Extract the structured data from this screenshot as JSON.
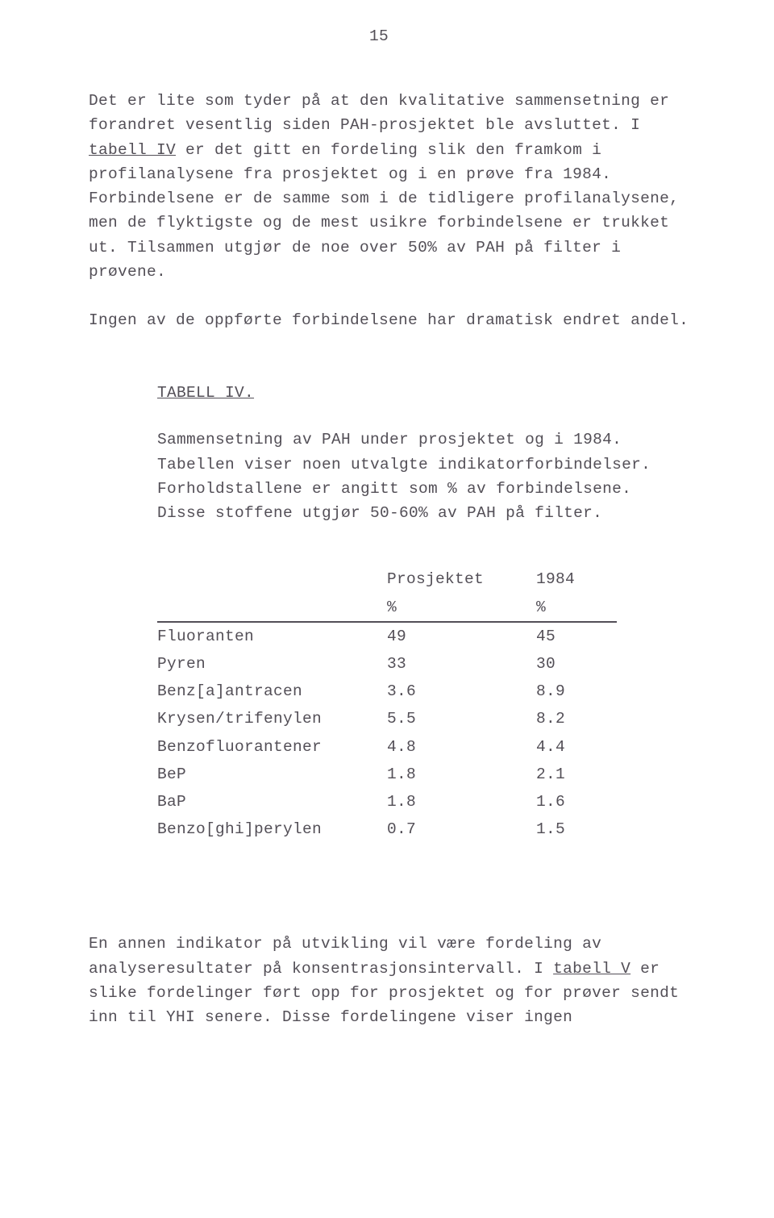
{
  "page_number": "15",
  "paragraphs": {
    "p1_a": "Det er lite som tyder på at den kvalitative sammensetning er forandret vesentlig siden PAH-prosjektet ble avsluttet.  I ",
    "p1_link": "tabell IV",
    "p1_b": " er det gitt en fordeling slik den framkom i profilanalysene fra prosjektet og i en prøve fra 1984. Forbindelsene er de samme som i de tidligere profilanalysene, men de flyktigste og de mest usikre forbindelsene er trukket ut.  Tilsammen utgjør de noe over 50% av PAH på filter i prøvene.",
    "p2": "Ingen av de oppførte forbindelsene har dramatisk endret andel.",
    "table_heading": "TABELL IV.",
    "caption": "Sammensetning av PAH under prosjektet og i 1984. Tabellen viser noen utvalgte indikatorforbindelser. Forholdstallene er angitt som % av forbindelsene. Disse stoffene utgjør 50-60% av PAH på filter.",
    "p3_a": "En annen indikator på utvikling vil være fordeling av analyseresultater på konsentrasjonsintervall.  I ",
    "p3_link": "tabell V",
    "p3_b": " er slike fordelinger ført opp for prosjektet og for prøver sendt inn til YHI senere.  Disse fordelingene viser ingen"
  },
  "table": {
    "headers": {
      "col1": "Prosjektet",
      "col2": "1984",
      "unit1": "%",
      "unit2": "%"
    },
    "rows": [
      {
        "name": "Fluoranten",
        "a": "49",
        "b": "45"
      },
      {
        "name": "Pyren",
        "a": "33",
        "b": "30"
      },
      {
        "name": "Benz[a]antracen",
        "a": "3.6",
        "b": "8.9"
      },
      {
        "name": "Krysen/trifenylen",
        "a": "5.5",
        "b": "8.2"
      },
      {
        "name": "Benzofluorantener",
        "a": "4.8",
        "b": "4.4"
      },
      {
        "name": "BeP",
        "a": "1.8",
        "b": "2.1"
      },
      {
        "name": "BaP",
        "a": "1.8",
        "b": "1.6"
      },
      {
        "name": "Benzo[ghi]perylen",
        "a": "0.7",
        "b": "1.5"
      }
    ]
  }
}
